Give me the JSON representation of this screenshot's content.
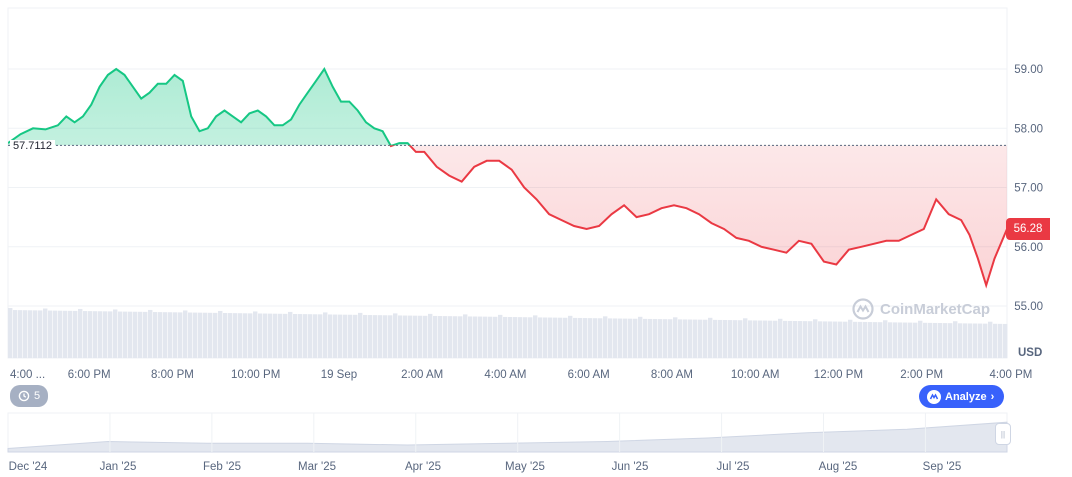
{
  "chart_data": {
    "type": "line",
    "title": "",
    "xlabel": "",
    "ylabel": "",
    "unit": "USD",
    "ylim": [
      54.7,
      59.8
    ],
    "y_ticks": [
      "59.00",
      "58.00",
      "57.00",
      "56.00",
      "55.00"
    ],
    "y_tick_values": [
      59,
      58,
      57,
      56,
      55
    ],
    "x_ticks": [
      "4:00 ...",
      "6:00 PM",
      "8:00 PM",
      "10:00 PM",
      "19 Sep",
      "2:00 AM",
      "4:00 AM",
      "6:00 AM",
      "8:00 AM",
      "10:00 AM",
      "12:00 PM",
      "2:00 PM",
      "4:00 PM"
    ],
    "x_tick_hours": [
      0,
      1.95,
      3.95,
      5.95,
      7.95,
      9.95,
      11.95,
      13.95,
      15.95,
      17.95,
      19.95,
      21.95,
      23.95
    ],
    "baseline": 57.7112,
    "baseline_label": "57.7112",
    "current_price": 56.28,
    "current_price_label": "56.28",
    "grid": true,
    "series": [
      {
        "x_hours": [
          0,
          0.3,
          0.6,
          0.9,
          1.2,
          1.4,
          1.6,
          1.8,
          2.0,
          2.2,
          2.4,
          2.6,
          2.8,
          3.0,
          3.2,
          3.4,
          3.6,
          3.8,
          4.0,
          4.2,
          4.4,
          4.6,
          4.8,
          5.0,
          5.2,
          5.4,
          5.6,
          5.8,
          6.0,
          6.2,
          6.4,
          6.6,
          6.8,
          7.0,
          7.2,
          7.4,
          7.6,
          7.8,
          8.0,
          8.2,
          8.4,
          8.6,
          8.8,
          9.0,
          9.2,
          9.4,
          9.6,
          9.8,
          10.0,
          10.3,
          10.6,
          10.9,
          11.2,
          11.5,
          11.8,
          12.1,
          12.4,
          12.7,
          13.0,
          13.3,
          13.6,
          13.9,
          14.2,
          14.5,
          14.8,
          15.1,
          15.4,
          15.7,
          16.0,
          16.3,
          16.6,
          16.9,
          17.2,
          17.5,
          17.8,
          18.1,
          18.4,
          18.7,
          19.0,
          19.3,
          19.6,
          19.9,
          20.2,
          20.5,
          20.8,
          21.1,
          21.4,
          21.7,
          22.0,
          22.3,
          22.6,
          22.9,
          23.1,
          23.3,
          23.5,
          23.7,
          24.0
        ],
        "values": [
          57.75,
          57.9,
          58.0,
          57.98,
          58.05,
          58.2,
          58.1,
          58.2,
          58.4,
          58.7,
          58.9,
          59.0,
          58.9,
          58.7,
          58.5,
          58.6,
          58.75,
          58.75,
          58.9,
          58.8,
          58.2,
          57.95,
          58.0,
          58.2,
          58.3,
          58.2,
          58.1,
          58.25,
          58.3,
          58.2,
          58.05,
          58.05,
          58.15,
          58.4,
          58.6,
          58.8,
          59.0,
          58.7,
          58.45,
          58.45,
          58.3,
          58.1,
          58.0,
          57.95,
          57.7,
          57.75,
          57.75,
          57.6,
          57.6,
          57.35,
          57.2,
          57.1,
          57.35,
          57.45,
          57.45,
          57.3,
          57.0,
          56.8,
          56.55,
          56.45,
          56.35,
          56.3,
          56.35,
          56.55,
          56.7,
          56.5,
          56.55,
          56.65,
          56.7,
          56.65,
          56.55,
          56.4,
          56.3,
          56.15,
          56.1,
          56.0,
          55.95,
          55.9,
          56.1,
          56.05,
          55.75,
          55.7,
          55.95,
          56.0,
          56.05,
          56.1,
          56.1,
          56.2,
          56.3,
          56.8,
          56.55,
          56.45,
          56.2,
          55.8,
          55.35,
          55.8,
          56.3
        ]
      }
    ],
    "volume_note": "",
    "navigator_ticks": [
      "Dec '24",
      "Jan '25",
      "Feb '25",
      "Mar '25",
      "Apr '25",
      "May '25",
      "Jun '25",
      "Jul '25",
      "Aug '25",
      "Sep '25"
    ],
    "navigator_values": [
      55.2,
      55.6,
      55.5,
      55.5,
      55.4,
      55.5,
      55.6,
      55.8,
      56.1,
      56.3,
      56.7
    ],
    "colors": {
      "up_line": "#16c784",
      "down_line": "#ea3943",
      "up_fill": "#16c784",
      "down_fill": "#ea3943",
      "volume": "#e3e7ef",
      "navigator_fill": "#e3e7ef",
      "navigator_line": "#cfd6e4"
    }
  },
  "ui": {
    "history_badge": "5",
    "analyze_label": "Analyze",
    "watermark": "CoinMarketCap",
    "unit_label": "USD",
    "history_icon": "history-icon",
    "analyze_icon": "cmc-logo-icon",
    "chevron_icon": "chevron-right-icon"
  }
}
